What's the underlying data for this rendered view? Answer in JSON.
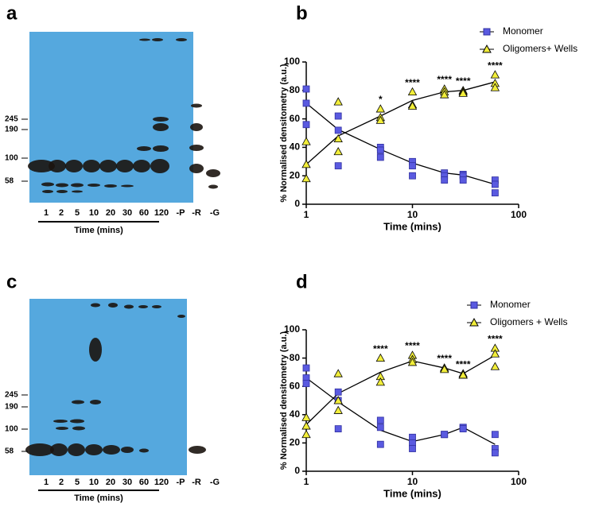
{
  "panels": [
    "a",
    "b",
    "c",
    "d"
  ],
  "blots": [
    {
      "markers": [
        "245",
        "190",
        "100",
        "58"
      ],
      "lanes": [
        "1",
        "2",
        "5",
        "10",
        "20",
        "30",
        "60",
        "120",
        "-P",
        "-R",
        "-G"
      ],
      "caption": "Time (mins)"
    },
    {
      "markers": [
        "245",
        "190",
        "100",
        "58"
      ],
      "lanes": [
        "1",
        "2",
        "5",
        "10",
        "20",
        "30",
        "60",
        "120",
        "-P",
        "-R",
        "-G"
      ],
      "caption": "Time (mins)"
    }
  ],
  "chart_data": [
    {
      "type": "scatter",
      "xlabel": "Time (mins)",
      "ylabel": "% Normalised densitometry (a.u.)",
      "xscale": "log",
      "xlim": [
        1,
        100
      ],
      "xticks": [
        1,
        10,
        100
      ],
      "ylim": [
        0,
        100
      ],
      "yticks": [
        0,
        20,
        40,
        60,
        80,
        100
      ],
      "series": [
        {
          "name": "Monomer",
          "color": "#5a5ae0",
          "marker": "square",
          "x": [
            1,
            1,
            1,
            2,
            2,
            2,
            5,
            5,
            5,
            10,
            10,
            10,
            20,
            20,
            20,
            30,
            30,
            30,
            60,
            60,
            60
          ],
          "values": [
            81,
            71,
            56,
            62,
            52,
            27,
            40,
            38,
            33,
            30,
            27,
            20,
            22,
            20,
            17,
            21,
            20,
            17,
            17,
            14,
            8
          ],
          "line_x": [
            1,
            2,
            5,
            10,
            20,
            30,
            60
          ],
          "line_values": [
            71,
            52.5,
            38.5,
            29,
            22,
            20.5,
            14
          ]
        },
        {
          "name": "Oligomers+ Wells",
          "color": "#f2ee3a",
          "marker": "triangle",
          "x": [
            1,
            1,
            1,
            2,
            2,
            2,
            5,
            5,
            5,
            10,
            10,
            10,
            20,
            20,
            20,
            30,
            30,
            30,
            60,
            60,
            60
          ],
          "values": [
            44,
            28,
            18,
            72,
            46,
            37,
            67,
            61,
            59,
            79,
            70,
            69,
            81,
            79,
            77,
            80,
            79,
            78,
            91,
            85,
            82
          ],
          "line_x": [
            1,
            2,
            5,
            10,
            20,
            30,
            60
          ],
          "line_values": [
            28,
            48,
            62,
            73,
            79,
            80,
            86
          ]
        }
      ],
      "annotations": [
        {
          "x": 5,
          "text": "*"
        },
        {
          "x": 10,
          "text": "****"
        },
        {
          "x": 20,
          "text": "****"
        },
        {
          "x": 30,
          "text": "****"
        },
        {
          "x": 60,
          "text": "****"
        }
      ]
    },
    {
      "type": "scatter",
      "xlabel": "Time (mins)",
      "ylabel": "% Normalised densitometry (a.u.)",
      "xscale": "log",
      "xlim": [
        1,
        100
      ],
      "xticks": [
        1,
        10,
        100
      ],
      "ylim": [
        0,
        100
      ],
      "yticks": [
        0,
        20,
        40,
        60,
        80,
        100
      ],
      "series": [
        {
          "name": "Monomer",
          "color": "#5a5ae0",
          "marker": "square",
          "x": [
            1,
            1,
            1,
            2,
            2,
            2,
            5,
            5,
            5,
            10,
            10,
            10,
            20,
            20,
            20,
            30,
            30,
            30,
            60,
            60,
            60
          ],
          "values": [
            73,
            66,
            62,
            56,
            50,
            30,
            36,
            31,
            19,
            24,
            20,
            16,
            26,
            26,
            26,
            31,
            31,
            30,
            26,
            16,
            13
          ],
          "line_x": [
            1,
            2,
            5,
            10,
            20,
            30,
            60
          ],
          "line_values": [
            66,
            49,
            29,
            21,
            26,
            31,
            19
          ]
        },
        {
          "name": "Oligomers + Wells",
          "color": "#f2ee3a",
          "marker": "triangle",
          "x": [
            1,
            1,
            1,
            2,
            2,
            2,
            5,
            5,
            5,
            10,
            10,
            10,
            20,
            20,
            20,
            30,
            30,
            30,
            60,
            60,
            60
          ],
          "values": [
            38,
            32,
            26,
            69,
            50,
            43,
            80,
            67,
            63,
            82,
            79,
            77,
            73,
            73,
            72,
            69,
            68,
            68,
            87,
            83,
            74
          ],
          "line_x": [
            1,
            2,
            5,
            10,
            20,
            30,
            60
          ],
          "line_values": [
            33,
            55,
            70,
            78,
            73,
            69,
            82
          ]
        }
      ],
      "annotations": [
        {
          "x": 5,
          "text": "****"
        },
        {
          "x": 10,
          "text": "****"
        },
        {
          "x": 20,
          "text": "****"
        },
        {
          "x": 30,
          "text": "****"
        },
        {
          "x": 60,
          "text": "****"
        }
      ]
    }
  ]
}
